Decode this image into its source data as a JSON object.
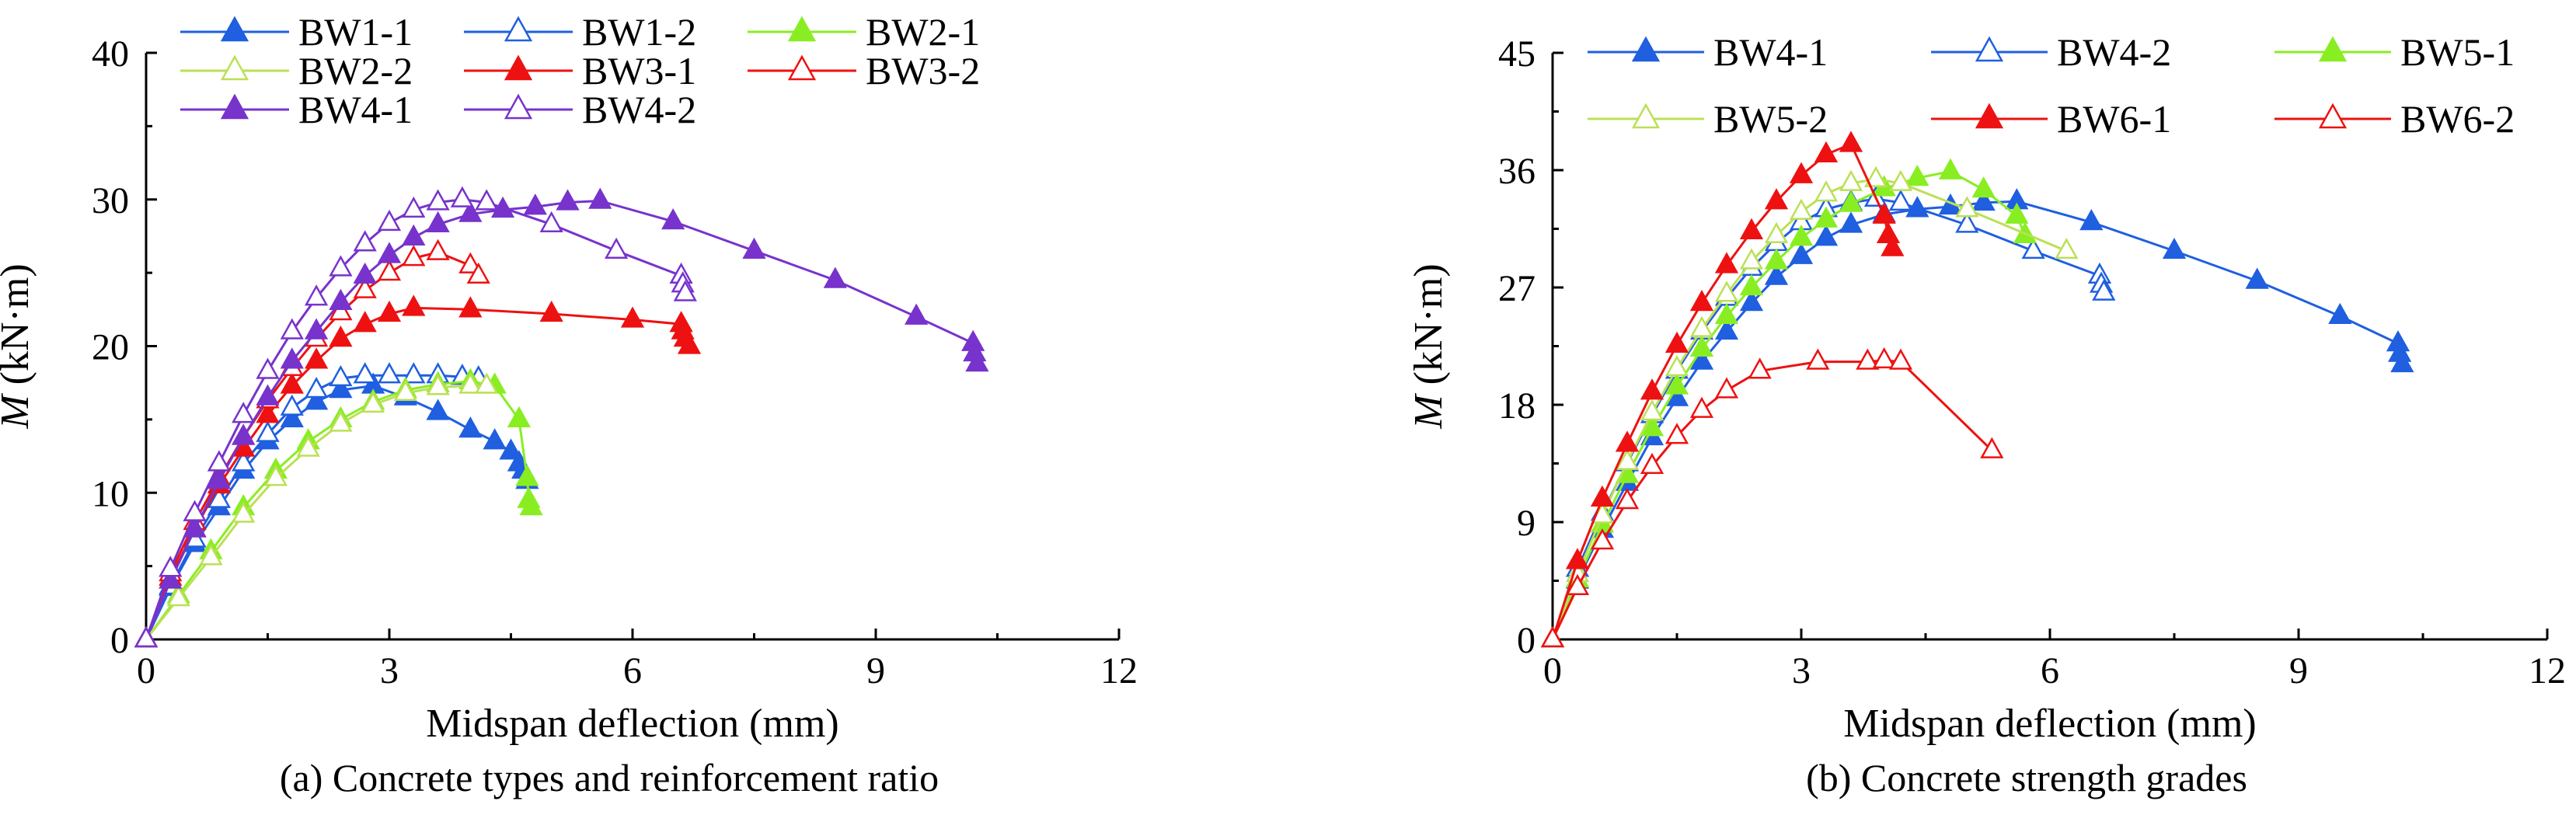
{
  "chart_data": [
    {
      "type": "line",
      "caption": "(a) Concrete types and reinforcement ratio",
      "xlabel": "Midspan deflection (mm)",
      "ylabel_symbol": "M",
      "ylabel_unit": " (kN·m)",
      "xlim": [
        0,
        12
      ],
      "ylim": [
        0,
        40
      ],
      "xticks": [
        0,
        3,
        6,
        9,
        12
      ],
      "yticks": [
        0,
        10,
        20,
        30,
        40
      ],
      "grid": false,
      "legend_position": "top-left",
      "legend_columns": 3,
      "series": [
        {
          "name": "BW1-1",
          "color": "#1f5fe0",
          "marker": "triangle-filled",
          "x": [
            0,
            0.3,
            0.6,
            0.9,
            1.2,
            1.5,
            1.8,
            2.1,
            2.4,
            2.8,
            3.2,
            3.6,
            4.0,
            4.3,
            4.5,
            4.6,
            4.65,
            4.7
          ],
          "y": [
            0,
            3.5,
            6.5,
            9,
            11.5,
            13.5,
            15,
            16.2,
            17,
            17.3,
            16.5,
            15.5,
            14.3,
            13.5,
            12.8,
            12,
            11.5,
            10.8
          ]
        },
        {
          "name": "BW1-2",
          "color": "#1f5fe0",
          "marker": "triangle-open",
          "x": [
            0,
            0.3,
            0.6,
            0.9,
            1.2,
            1.5,
            1.8,
            2.1,
            2.4,
            2.7,
            3.0,
            3.3,
            3.6,
            3.9,
            4.1
          ],
          "y": [
            0,
            3.6,
            6.8,
            9.5,
            12,
            14,
            15.8,
            17,
            17.8,
            18,
            18,
            18,
            18,
            17.9,
            17.8
          ]
        },
        {
          "name": "BW2-1",
          "color": "#88ee22",
          "marker": "triangle-filled",
          "x": [
            0,
            0.4,
            0.8,
            1.2,
            1.6,
            2.0,
            2.4,
            2.8,
            3.2,
            3.6,
            4.0,
            4.3,
            4.6,
            4.7,
            4.72,
            4.75
          ],
          "y": [
            0,
            3,
            6,
            9,
            11.5,
            13.5,
            15,
            16.2,
            17,
            17.4,
            17.6,
            17.3,
            15,
            11,
            9.5,
            9
          ]
        },
        {
          "name": "BW2-2",
          "color": "#bbe055",
          "marker": "triangle-open",
          "x": [
            0,
            0.4,
            0.8,
            1.2,
            1.6,
            2.0,
            2.4,
            2.8,
            3.2,
            3.6,
            4.0,
            4.2
          ],
          "y": [
            0,
            2.8,
            5.6,
            8.5,
            11,
            13,
            14.7,
            16,
            16.8,
            17.2,
            17.3,
            17.3
          ]
        },
        {
          "name": "BW3-1",
          "color": "#ee1111",
          "marker": "triangle-filled",
          "x": [
            0,
            0.3,
            0.6,
            0.9,
            1.2,
            1.5,
            1.8,
            2.1,
            2.4,
            2.7,
            3.0,
            3.3,
            4.0,
            5.0,
            6.0,
            6.6,
            6.62,
            6.65,
            6.7
          ],
          "y": [
            0,
            4.2,
            7.5,
            10.5,
            13,
            15.3,
            17.3,
            19,
            20.5,
            21.5,
            22.2,
            22.6,
            22.5,
            22.2,
            21.8,
            21.5,
            21,
            20.5,
            20
          ]
        },
        {
          "name": "BW3-2",
          "color": "#ee1111",
          "marker": "triangle-open",
          "x": [
            0,
            0.3,
            0.6,
            0.9,
            1.2,
            1.5,
            1.8,
            2.1,
            2.4,
            2.7,
            3.0,
            3.3,
            3.6,
            4.0,
            4.1
          ],
          "y": [
            0,
            4.5,
            8,
            11,
            13.8,
            16.3,
            18.5,
            20.5,
            22.3,
            23.8,
            25,
            26,
            26.4,
            25.5,
            24.8
          ]
        },
        {
          "name": "BW4-1",
          "color": "#7733cc",
          "marker": "triangle-filled",
          "x": [
            0,
            0.3,
            0.6,
            0.9,
            1.2,
            1.5,
            1.8,
            2.1,
            2.4,
            2.7,
            3.0,
            3.3,
            3.6,
            4.0,
            4.4,
            4.8,
            5.2,
            5.6,
            6.5,
            7.5,
            8.5,
            9.5,
            10.2,
            10.22,
            10.25
          ],
          "y": [
            0,
            4,
            7.5,
            10.8,
            13.8,
            16.5,
            19,
            21,
            23,
            24.8,
            26.2,
            27.4,
            28.3,
            29,
            29.3,
            29.5,
            29.8,
            29.9,
            28.5,
            26.5,
            24.5,
            22,
            20.2,
            19.5,
            18.8
          ]
        },
        {
          "name": "BW4-2",
          "color": "#7733cc",
          "marker": "triangle-open",
          "x": [
            0,
            0.3,
            0.6,
            0.9,
            1.2,
            1.5,
            1.8,
            2.1,
            2.4,
            2.7,
            3.0,
            3.3,
            3.6,
            3.9,
            4.2,
            5.0,
            5.8,
            6.6,
            6.62,
            6.65
          ],
          "y": [
            0,
            4.8,
            8.6,
            12,
            15.3,
            18.3,
            21,
            23.3,
            25.3,
            27,
            28.4,
            29.3,
            29.8,
            30,
            29.8,
            28.3,
            26.5,
            24.8,
            24.2,
            23.6
          ]
        }
      ]
    },
    {
      "type": "line",
      "caption": "(b) Concrete strength grades",
      "xlabel": "Midspan deflection (mm)",
      "ylabel_symbol": "M",
      "ylabel_unit": " (kN·m)",
      "xlim": [
        0,
        12
      ],
      "ylim": [
        0,
        45
      ],
      "xticks": [
        0,
        3,
        6,
        9,
        12
      ],
      "yticks": [
        0,
        9,
        18,
        27,
        36,
        45
      ],
      "grid": false,
      "legend_position": "top",
      "legend_columns": 3,
      "series": [
        {
          "name": "BW4-1",
          "color": "#1f5fe0",
          "marker": "triangle-filled",
          "x": [
            0,
            0.3,
            0.6,
            0.9,
            1.2,
            1.5,
            1.8,
            2.1,
            2.4,
            2.7,
            3.0,
            3.3,
            3.6,
            4.0,
            4.4,
            4.8,
            5.2,
            5.6,
            6.5,
            7.5,
            8.5,
            9.5,
            10.2,
            10.22,
            10.25
          ],
          "y": [
            0,
            4.5,
            8.4,
            12,
            15.5,
            18.5,
            21.3,
            23.6,
            25.8,
            27.8,
            29.4,
            30.8,
            31.8,
            32.6,
            33,
            33.2,
            33.5,
            33.6,
            32,
            29.8,
            27.5,
            24.8,
            22.7,
            21.9,
            21.1
          ]
        },
        {
          "name": "BW4-2",
          "color": "#1f5fe0",
          "marker": "triangle-open",
          "x": [
            0,
            0.3,
            0.6,
            0.9,
            1.2,
            1.5,
            1.8,
            2.1,
            2.4,
            2.7,
            3.0,
            3.3,
            3.6,
            3.9,
            4.2,
            5.0,
            5.8,
            6.6,
            6.62,
            6.65
          ],
          "y": [
            0,
            5.4,
            9.7,
            13.5,
            17.2,
            20.6,
            23.6,
            26.2,
            28.5,
            30.4,
            32,
            33,
            33.5,
            33.8,
            33.5,
            31.8,
            29.8,
            27.9,
            27.2,
            26.6
          ]
        },
        {
          "name": "BW5-1",
          "color": "#88ee22",
          "marker": "triangle-filled",
          "x": [
            0,
            0.3,
            0.6,
            0.9,
            1.2,
            1.5,
            1.8,
            2.1,
            2.4,
            2.7,
            3.0,
            3.3,
            3.6,
            4.0,
            4.4,
            4.8,
            5.2,
            5.6,
            5.7
          ],
          "y": [
            0,
            4.6,
            8.8,
            12.6,
            16.2,
            19.4,
            22.3,
            24.8,
            27,
            29,
            30.8,
            32.2,
            33.4,
            34.6,
            35.4,
            35.9,
            34.5,
            32.5,
            31
          ]
        },
        {
          "name": "BW5-2",
          "color": "#bbe055",
          "marker": "triangle-open",
          "x": [
            0,
            0.3,
            0.6,
            0.9,
            1.2,
            1.5,
            1.8,
            2.1,
            2.4,
            2.7,
            3.0,
            3.3,
            3.6,
            3.9,
            4.2,
            5.0,
            6.2
          ],
          "y": [
            0,
            5,
            9.5,
            13.6,
            17.4,
            20.8,
            23.8,
            26.5,
            29,
            31,
            32.8,
            34.2,
            35,
            35.3,
            35,
            33,
            29.8
          ]
        },
        {
          "name": "BW6-1",
          "color": "#ee1111",
          "marker": "triangle-filled",
          "x": [
            0,
            0.3,
            0.6,
            0.9,
            1.2,
            1.5,
            1.8,
            2.1,
            2.4,
            2.7,
            3.0,
            3.3,
            3.6,
            4.0,
            4.05,
            4.1
          ],
          "y": [
            0,
            6,
            10.8,
            15,
            19,
            22.6,
            25.8,
            28.7,
            31.3,
            33.6,
            35.6,
            37.2,
            38,
            32.5,
            31,
            30
          ]
        },
        {
          "name": "BW6-2",
          "color": "#ee1111",
          "marker": "triangle-open",
          "x": [
            0,
            0.3,
            0.6,
            0.9,
            1.2,
            1.5,
            1.8,
            2.1,
            2.5,
            3.2,
            3.8,
            4.0,
            4.2,
            5.3
          ],
          "y": [
            0,
            4,
            7.5,
            10.6,
            13.3,
            15.6,
            17.6,
            19.1,
            20.6,
            21.3,
            21.3,
            21.4,
            21.3,
            14.5
          ]
        }
      ]
    }
  ]
}
